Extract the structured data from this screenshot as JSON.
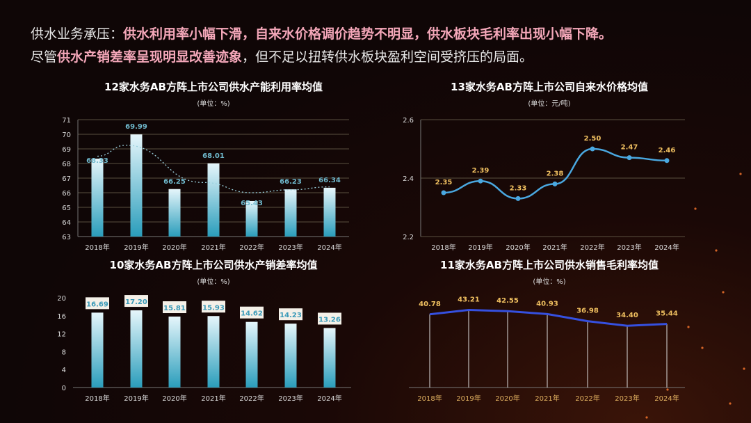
{
  "headline": {
    "line1_prefix": "供水业务承压：",
    "line1_bold": "供水利用率小幅下滑，自来水价格调价趋势不明显，供水板块毛利率出现小幅下降。",
    "line2_prefix": "尽管",
    "line2_bold": "供水产销差率呈现明显改善迹象",
    "line2_suffix": "，但不足以扭转供水板块盈利空间受挤压的局面。"
  },
  "colors": {
    "highlight": "#f4a7b9",
    "bar_top": "#e6f6fb",
    "bar_bottom": "#2a9dbb",
    "teal_label": "#6fb8cc",
    "gold_label": "#f0c060",
    "line_blue": "#4aa8e0",
    "line_navy": "#3550e0"
  },
  "chart_data": [
    {
      "type": "bar",
      "title": "12家水务AB方阵上市公司供水产能利用率均值",
      "subtitle": "(单位：%)",
      "categories": [
        "2018年",
        "2019年",
        "2020年",
        "2021年",
        "2022年",
        "2023年",
        "2024年"
      ],
      "values": [
        68.33,
        69.99,
        66.25,
        68.01,
        65.43,
        66.23,
        66.34
      ],
      "ylim": [
        63,
        71
      ],
      "yticks": [
        63,
        64,
        65,
        66,
        67,
        68,
        69,
        70,
        71
      ],
      "grid": true,
      "trendline": "dotted smooth"
    },
    {
      "type": "line",
      "title": "13家水务AB方阵上市公司自来水价格均值",
      "subtitle": "(单位：元/吨)",
      "categories": [
        "2018年",
        "2019年",
        "2020年",
        "2021年",
        "2022年",
        "2023年",
        "2024年"
      ],
      "values": [
        2.35,
        2.39,
        2.33,
        2.38,
        2.5,
        2.47,
        2.46
      ],
      "ylim": [
        2.2,
        2.6
      ],
      "yticks": [
        2.2,
        2.4,
        2.6
      ],
      "grid": false
    },
    {
      "type": "bar",
      "title": "10家水务AB方阵上市公司供水产销差率均值",
      "subtitle": "(单位：%)",
      "categories": [
        "2018年",
        "2019年",
        "2020年",
        "2021年",
        "2022年",
        "2023年",
        "2024年"
      ],
      "values": [
        16.69,
        17.2,
        15.81,
        15.93,
        14.62,
        14.23,
        13.26
      ],
      "ylim": [
        0,
        20
      ],
      "yticks": [
        0,
        4,
        8,
        12,
        16,
        20
      ],
      "grid": false
    },
    {
      "type": "line",
      "title": "11家水务AB方阵上市公司供水销售毛利率均值",
      "subtitle": "(单位：%)",
      "categories": [
        "2018年",
        "2019年",
        "2020年",
        "2021年",
        "2022年",
        "2023年",
        "2024年"
      ],
      "values": [
        40.78,
        43.21,
        42.55,
        40.93,
        36.98,
        34.4,
        35.44
      ],
      "ylim": [
        0,
        50
      ],
      "grid": false,
      "drop_lines": true
    }
  ]
}
